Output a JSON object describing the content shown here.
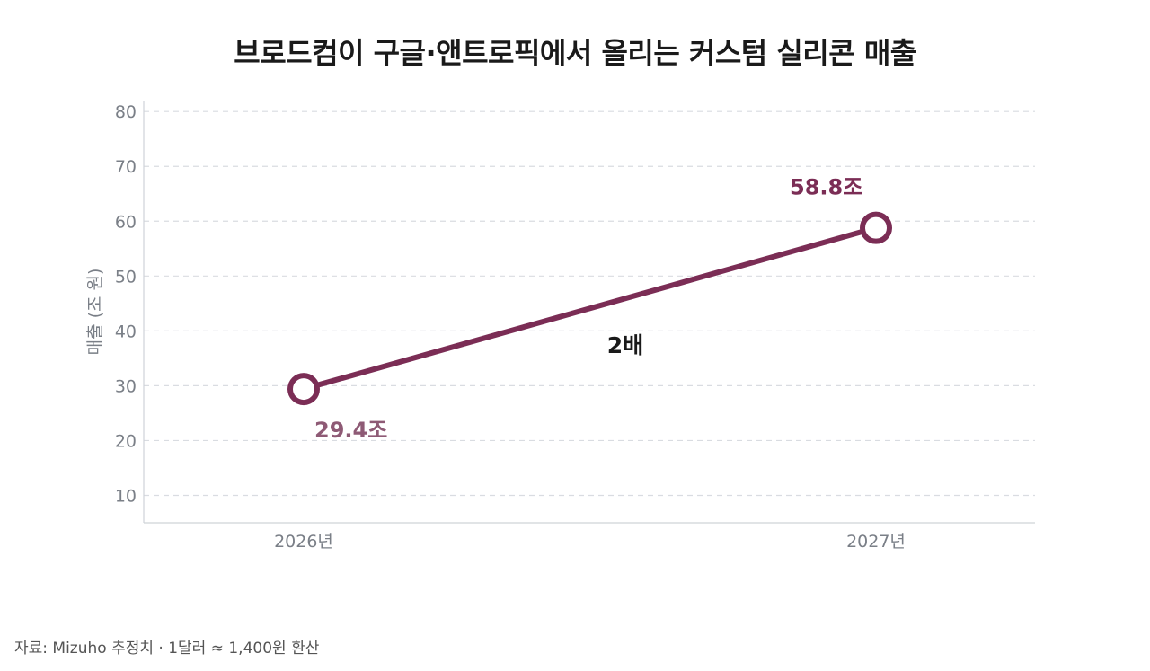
{
  "chart_data": {
    "type": "line",
    "title": "브로드컴이 구글·앤트로픽에서 올리는 커스텀 실리콘 매출",
    "ylabel": "매출 (조 원)",
    "xlabel": "",
    "categories": [
      "2026년",
      "2027년"
    ],
    "series": [
      {
        "values": [
          29.4,
          58.8
        ],
        "labels": [
          "29.4조",
          "58.8조"
        ],
        "color": "#7b2d55"
      }
    ],
    "yticks": [
      10,
      20,
      30,
      40,
      50,
      60,
      70,
      80
    ],
    "ylim": [
      5,
      82
    ],
    "grid": true,
    "annotation": "2배",
    "colors": {
      "line": "#7b2d55",
      "label_low": "#8e5a75",
      "label_high": "#7b2d55",
      "grid": "#d9dce1"
    }
  },
  "source": "자료: Mizuho 추정치 · 1달러 ≈ 1,400원 환산"
}
